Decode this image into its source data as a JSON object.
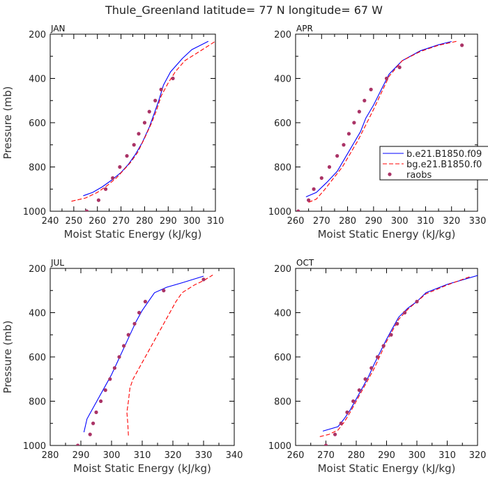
{
  "figure": {
    "title": "Thule_Greenland  latitude= 77 N longitude= 67 W"
  },
  "legend": {
    "items": [
      {
        "label": "b.e21.B1850.f09",
        "color": "#0000ff",
        "style": "solid"
      },
      {
        "label": "bg.e21.B1850.f0",
        "color": "#ff0000",
        "style": "dashed"
      },
      {
        "label": "raobs",
        "color": "#aa3366",
        "style": "dots"
      }
    ]
  },
  "chart_data": [
    {
      "type": "line",
      "title": "JAN",
      "xlabel": "Moist Static Energy (kJ/kg)",
      "ylabel": "Pressure (mb)",
      "xlim": [
        240,
        310
      ],
      "ylim": [
        1000,
        200
      ],
      "xticks": [
        240,
        250,
        260,
        270,
        280,
        290,
        300,
        310
      ],
      "yticks": [
        200,
        400,
        600,
        800,
        1000
      ],
      "series": [
        {
          "name": "b.e21.B1850.f09",
          "color": "#0000ff",
          "style": "solid",
          "points": [
            [
              254,
              930
            ],
            [
              258,
              915
            ],
            [
              262,
              890
            ],
            [
              266,
              860
            ],
            [
              270,
              825
            ],
            [
              273,
              790
            ],
            [
              276,
              745
            ],
            [
              279,
              690
            ],
            [
              282,
              620
            ],
            [
              284,
              560
            ],
            [
              286,
              500
            ],
            [
              288,
              430
            ],
            [
              291,
              370
            ],
            [
              296,
              310
            ],
            [
              300,
              270
            ],
            [
              307,
              232
            ]
          ]
        },
        {
          "name": "bg.e21.B1850.f0",
          "color": "#ff0000",
          "style": "dashed",
          "points": [
            [
              249,
              955
            ],
            [
              255,
              940
            ],
            [
              260,
              915
            ],
            [
              264,
              885
            ],
            [
              268,
              850
            ],
            [
              271,
              815
            ],
            [
              274,
              780
            ],
            [
              277,
              735
            ],
            [
              280,
              670
            ],
            [
              283,
              600
            ],
            [
              285,
              545
            ],
            [
              287,
              480
            ],
            [
              290,
              420
            ],
            [
              293,
              370
            ],
            [
              297,
              320
            ],
            [
              303,
              280
            ],
            [
              310,
              232
            ]
          ]
        },
        {
          "name": "raobs",
          "color": "#aa3366",
          "style": "dots",
          "points": [
            [
              255.5,
              1000
            ],
            [
              260.5,
              950
            ],
            [
              263.5,
              900
            ],
            [
              266.5,
              850
            ],
            [
              269.5,
              800
            ],
            [
              272.5,
              750
            ],
            [
              275.5,
              700
            ],
            [
              277.5,
              650
            ],
            [
              280,
              600
            ],
            [
              282,
              550
            ],
            [
              284.5,
              500
            ],
            [
              287,
              450
            ],
            [
              292,
              400
            ]
          ]
        }
      ]
    },
    {
      "type": "line",
      "title": "APR",
      "xlabel": "Moist Static Energy (kJ/kg)",
      "ylabel": "",
      "xlim": [
        260,
        330
      ],
      "ylim": [
        1000,
        200
      ],
      "xticks": [
        260,
        270,
        280,
        290,
        300,
        310,
        320,
        330
      ],
      "yticks": [
        200,
        400,
        600,
        800,
        1000
      ],
      "series": [
        {
          "name": "b.e21.B1850.f09",
          "color": "#0000ff",
          "style": "solid",
          "points": [
            [
              264,
              935
            ],
            [
              268,
              915
            ],
            [
              272,
              870
            ],
            [
              276,
              820
            ],
            [
              279,
              760
            ],
            [
              282,
              700
            ],
            [
              285,
              640
            ],
            [
              287,
              580
            ],
            [
              290,
              520
            ],
            [
              293,
              450
            ],
            [
              296,
              380
            ],
            [
              301,
              320
            ],
            [
              308,
              275
            ],
            [
              315,
              248
            ],
            [
              320,
              233
            ]
          ]
        },
        {
          "name": "bg.e21.B1850.f0",
          "color": "#ff0000",
          "style": "dashed",
          "points": [
            [
              265,
              960
            ],
            [
              268,
              945
            ],
            [
              271,
              905
            ],
            [
              274,
              860
            ],
            [
              278,
              800
            ],
            [
              281,
              740
            ],
            [
              284,
              680
            ],
            [
              287,
              610
            ],
            [
              290,
              540
            ],
            [
              293,
              465
            ],
            [
              296,
              390
            ],
            [
              301,
              320
            ],
            [
              308,
              278
            ],
            [
              315,
              250
            ],
            [
              322,
              232
            ]
          ]
        },
        {
          "name": "raobs",
          "color": "#aa3366",
          "style": "dots",
          "points": [
            [
              261,
              1000
            ],
            [
              265,
              950
            ],
            [
              267,
              900
            ],
            [
              270,
              850
            ],
            [
              273,
              800
            ],
            [
              276,
              750
            ],
            [
              278.5,
              700
            ],
            [
              280.5,
              650
            ],
            [
              282.5,
              600
            ],
            [
              284.5,
              550
            ],
            [
              286.5,
              500
            ],
            [
              289,
              450
            ],
            [
              295,
              400
            ],
            [
              300,
              350
            ],
            [
              324,
              250
            ]
          ]
        }
      ]
    },
    {
      "type": "line",
      "title": "JUL",
      "xlabel": "Moist Static Energy (kJ/kg)",
      "ylabel": "Pressure (mb)",
      "xlim": [
        280,
        340
      ],
      "ylim": [
        1000,
        200
      ],
      "xticks": [
        280,
        290,
        300,
        310,
        320,
        330,
        340
      ],
      "yticks": [
        200,
        400,
        600,
        800,
        1000
      ],
      "series": [
        {
          "name": "b.e21.B1850.f09",
          "color": "#0000ff",
          "style": "solid",
          "points": [
            [
              291,
              940
            ],
            [
              292,
              880
            ],
            [
              294,
              830
            ],
            [
              296,
              780
            ],
            [
              298,
              730
            ],
            [
              300,
              680
            ],
            [
              302,
              620
            ],
            [
              304,
              560
            ],
            [
              306,
              500
            ],
            [
              308,
              440
            ],
            [
              310,
              390
            ],
            [
              312,
              350
            ],
            [
              314,
              310
            ],
            [
              318,
              285
            ],
            [
              323,
              265
            ],
            [
              330,
              235
            ]
          ]
        },
        {
          "name": "bg.e21.B1850.f0",
          "color": "#ff0000",
          "style": "dashed",
          "points": [
            [
              305.5,
              955
            ],
            [
              305.3,
              900
            ],
            [
              305,
              850
            ],
            [
              305.5,
              800
            ],
            [
              306,
              740
            ],
            [
              307,
              700
            ],
            [
              309,
              650
            ],
            [
              311,
              600
            ],
            [
              313,
              550
            ],
            [
              315,
              500
            ],
            [
              317,
              450
            ],
            [
              319,
              400
            ],
            [
              321,
              350
            ],
            [
              323,
              310
            ],
            [
              327,
              275
            ],
            [
              330,
              255
            ],
            [
              333,
              230
            ]
          ]
        },
        {
          "name": "raobs",
          "color": "#aa3366",
          "style": "dots",
          "points": [
            [
              289,
              1000
            ],
            [
              293,
              950
            ],
            [
              294,
              900
            ],
            [
              295,
              850
            ],
            [
              296.5,
              800
            ],
            [
              298,
              750
            ],
            [
              299.5,
              700
            ],
            [
              301,
              650
            ],
            [
              302.5,
              600
            ],
            [
              304,
              550
            ],
            [
              305.5,
              500
            ],
            [
              307.5,
              450
            ],
            [
              309,
              400
            ],
            [
              311,
              350
            ],
            [
              317,
              300
            ],
            [
              330,
              250
            ]
          ]
        }
      ]
    },
    {
      "type": "line",
      "title": "OCT",
      "xlabel": "Moist Static Energy (kJ/kg)",
      "ylabel": "",
      "xlim": [
        260,
        320
      ],
      "ylim": [
        1000,
        200
      ],
      "xticks": [
        260,
        270,
        280,
        290,
        300,
        310,
        320
      ],
      "yticks": [
        200,
        400,
        600,
        800,
        1000
      ],
      "series": [
        {
          "name": "b.e21.B1850.f09",
          "color": "#0000ff",
          "style": "solid",
          "points": [
            [
              269,
              935
            ],
            [
              274,
              915
            ],
            [
              276,
              880
            ],
            [
              278,
              840
            ],
            [
              280,
              790
            ],
            [
              282,
              740
            ],
            [
              284,
              690
            ],
            [
              286,
              630
            ],
            [
              288,
              575
            ],
            [
              290,
              520
            ],
            [
              292,
              470
            ],
            [
              294,
              420
            ],
            [
              297,
              380
            ],
            [
              300,
              350
            ],
            [
              303,
              310
            ],
            [
              310,
              272
            ],
            [
              320,
              232
            ]
          ]
        },
        {
          "name": "bg.e21.B1850.f0",
          "color": "#ff0000",
          "style": "dashed",
          "points": [
            [
              268,
              960
            ],
            [
              271,
              950
            ],
            [
              274,
              930
            ],
            [
              276,
              895
            ],
            [
              278,
              850
            ],
            [
              280,
              800
            ],
            [
              282,
              750
            ],
            [
              284,
              700
            ],
            [
              286,
              650
            ],
            [
              288,
              590
            ],
            [
              290,
              530
            ],
            [
              292,
              480
            ],
            [
              294,
              430
            ],
            [
              297,
              385
            ],
            [
              300,
              350
            ],
            [
              303,
              315
            ],
            [
              310,
              275
            ],
            [
              318,
              235
            ]
          ]
        },
        {
          "name": "raobs",
          "color": "#aa3366",
          "style": "dots",
          "points": [
            [
              270,
              1000
            ],
            [
              273,
              950
            ],
            [
              275,
              900
            ],
            [
              277,
              850
            ],
            [
              279,
              800
            ],
            [
              281,
              750
            ],
            [
              283,
              700
            ],
            [
              285,
              650
            ],
            [
              287,
              600
            ],
            [
              289,
              550
            ],
            [
              291.5,
              500
            ],
            [
              293.5,
              450
            ],
            [
              296,
              400
            ],
            [
              300,
              350
            ]
          ]
        }
      ]
    }
  ]
}
